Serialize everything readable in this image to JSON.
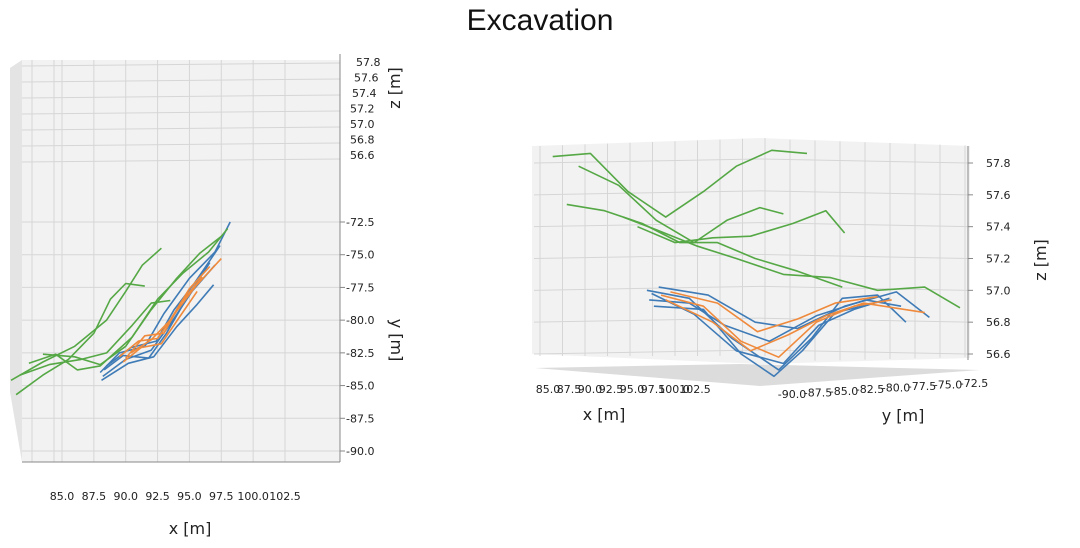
{
  "page": {
    "title": "Excavation"
  },
  "colors": {
    "blue": "#3f7bb6",
    "orange": "#ef8a3c",
    "green": "#55a845",
    "grid": "#d6d6d6",
    "pane": "#f2f2f2"
  },
  "chart_data": [
    {
      "type": "line",
      "projection": "3d-view-top",
      "x_axis": {
        "label": "x [m]",
        "ticks": [
          "85.0",
          "87.5",
          "90.0",
          "92.5",
          "95.0",
          "97.5",
          "100.0",
          "102.5"
        ]
      },
      "y_axis": {
        "label": "y [m]",
        "ticks": [
          "-72.5",
          "-75.0",
          "-77.5",
          "-80.0",
          "-82.5",
          "-85.0",
          "-87.5",
          "-90.0"
        ]
      },
      "z_axis": {
        "label": "z [m]",
        "ticks": [
          "57.8",
          "57.6",
          "57.4",
          "57.2",
          "57.0",
          "56.8",
          "56.6"
        ]
      },
      "series": [
        {
          "color": "blue",
          "lines": [
            [
              [
                88.0,
                -84.0
              ],
              [
                89.5,
                -82.5
              ],
              [
                91.5,
                -82.0
              ],
              [
                93.0,
                -79.5
              ],
              [
                95.0,
                -76.8
              ],
              [
                97.0,
                -74.8
              ],
              [
                98.2,
                -72.5
              ]
            ],
            [
              [
                88.2,
                -84.3
              ],
              [
                90.0,
                -83.0
              ],
              [
                92.0,
                -82.3
              ],
              [
                93.5,
                -80.3
              ],
              [
                95.2,
                -77.8
              ],
              [
                97.0,
                -75.8
              ]
            ],
            [
              [
                88.1,
                -84.6
              ],
              [
                90.2,
                -83.3
              ],
              [
                92.2,
                -82.8
              ],
              [
                94.0,
                -80.5
              ],
              [
                95.6,
                -78.8
              ],
              [
                96.9,
                -77.3
              ]
            ],
            [
              [
                88.3,
                -83.8
              ],
              [
                89.8,
                -82.7
              ],
              [
                91.8,
                -82.9
              ],
              [
                93.2,
                -81.0
              ],
              [
                94.8,
                -78.3
              ],
              [
                96.6,
                -75.6
              ]
            ],
            [
              [
                88.5,
                -83.5
              ],
              [
                90.4,
                -82.1
              ],
              [
                92.4,
                -81.6
              ],
              [
                93.8,
                -79.2
              ],
              [
                95.3,
                -77.3
              ],
              [
                97.4,
                -74.3
              ]
            ]
          ]
        },
        {
          "color": "orange",
          "lines": [
            [
              [
                89.5,
                -82.8
              ],
              [
                91.0,
                -81.6
              ],
              [
                92.5,
                -81.4
              ],
              [
                94.0,
                -79.3
              ],
              [
                95.5,
                -77.4
              ],
              [
                97.5,
                -75.3
              ]
            ],
            [
              [
                90.0,
                -82.9
              ],
              [
                91.5,
                -81.2
              ],
              [
                93.0,
                -81.0
              ],
              [
                94.3,
                -78.7
              ],
              [
                96.0,
                -76.7
              ]
            ],
            [
              [
                89.8,
                -83.2
              ],
              [
                91.2,
                -82.1
              ],
              [
                92.8,
                -81.8
              ],
              [
                94.2,
                -79.8
              ],
              [
                95.6,
                -77.8
              ]
            ],
            [
              [
                90.4,
                -82.5
              ],
              [
                92.0,
                -81.5
              ],
              [
                93.5,
                -80.0
              ],
              [
                95.0,
                -77.6
              ],
              [
                96.6,
                -75.9
              ]
            ]
          ]
        },
        {
          "color": "green",
          "lines": [
            [
              [
                81.0,
                -84.6
              ],
              [
                83.5,
                -83.2
              ],
              [
                86.0,
                -82.0
              ],
              [
                88.5,
                -80.0
              ],
              [
                90.0,
                -77.8
              ],
              [
                91.3,
                -75.8
              ],
              [
                92.8,
                -74.5
              ]
            ],
            [
              [
                81.4,
                -85.7
              ],
              [
                83.5,
                -84.2
              ],
              [
                85.5,
                -83.0
              ],
              [
                87.5,
                -81.0
              ],
              [
                88.8,
                -78.4
              ],
              [
                90.0,
                -77.2
              ],
              [
                91.5,
                -77.4
              ]
            ],
            [
              [
                81.7,
                -84.2
              ],
              [
                84.0,
                -83.4
              ],
              [
                86.5,
                -83.0
              ],
              [
                88.5,
                -82.5
              ],
              [
                90.5,
                -80.4
              ],
              [
                92.0,
                -78.7
              ],
              [
                93.5,
                -78.5
              ]
            ],
            [
              [
                82.4,
                -83.3
              ],
              [
                84.5,
                -82.6
              ],
              [
                86.2,
                -83.8
              ],
              [
                88.0,
                -83.5
              ],
              [
                90.5,
                -81.3
              ],
              [
                92.5,
                -78.4
              ],
              [
                94.5,
                -76.4
              ],
              [
                96.5,
                -74.8
              ],
              [
                98.0,
                -73.0
              ]
            ],
            [
              [
                83.5,
                -82.6
              ],
              [
                86.0,
                -82.8
              ],
              [
                88.0,
                -83.4
              ],
              [
                90.0,
                -82.0
              ],
              [
                92.0,
                -79.2
              ],
              [
                94.0,
                -76.8
              ],
              [
                95.8,
                -74.9
              ],
              [
                97.5,
                -73.6
              ]
            ]
          ]
        }
      ]
    },
    {
      "type": "line",
      "projection": "3d-view-side",
      "x_axis": {
        "label": "x [m]",
        "ticks": [
          "85.0",
          "87.5",
          "90.0",
          "92.5",
          "95.0",
          "97.5",
          "100.0",
          "102.5"
        ]
      },
      "y_axis": {
        "label": "y [m]",
        "ticks": [
          "-90.0",
          "-87.5",
          "-85.0",
          "-82.5",
          "-80.0",
          "-77.5",
          "-75.0",
          "-72.5"
        ]
      },
      "z_axis": {
        "label": "z [m]",
        "ticks": [
          "57.8",
          "57.6",
          "57.4",
          "57.2",
          "57.0",
          "56.8",
          "56.6"
        ],
        "range": [
          56.5,
          57.9
        ]
      },
      "x_range": [
        85.0,
        102.5
      ],
      "series": [
        {
          "color": "blue",
          "lines": [
            [
              [
                89.2,
                57.0
              ],
              [
                91.0,
                56.95
              ],
              [
                92.8,
                56.7
              ],
              [
                94.8,
                56.5
              ],
              [
                96.2,
                56.7
              ],
              [
                97.5,
                56.95
              ],
              [
                99.0,
                56.97
              ],
              [
                100.2,
                56.8
              ]
            ],
            [
              [
                89.4,
                56.98
              ],
              [
                91.2,
                56.85
              ],
              [
                93.0,
                56.62
              ],
              [
                95.0,
                56.54
              ],
              [
                96.5,
                56.78
              ],
              [
                98.0,
                56.88
              ],
              [
                99.5,
                56.95
              ]
            ],
            [
              [
                89.3,
                56.94
              ],
              [
                91.0,
                56.92
              ],
              [
                92.5,
                56.78
              ],
              [
                94.4,
                56.68
              ],
              [
                96.4,
                56.84
              ],
              [
                98.5,
                56.94
              ],
              [
                100.0,
                56.9
              ]
            ],
            [
              [
                89.5,
                56.9
              ],
              [
                91.6,
                56.88
              ],
              [
                93.2,
                56.6
              ],
              [
                94.6,
                56.46
              ],
              [
                95.8,
                56.62
              ],
              [
                97.2,
                56.86
              ],
              [
                98.6,
                56.91
              ]
            ],
            [
              [
                89.7,
                57.02
              ],
              [
                91.8,
                56.97
              ],
              [
                93.8,
                56.8
              ],
              [
                95.6,
                56.76
              ],
              [
                97.6,
                56.9
              ],
              [
                99.8,
                56.99
              ],
              [
                101.2,
                56.83
              ]
            ]
          ]
        },
        {
          "color": "orange",
          "lines": [
            [
              [
                89.8,
                56.97
              ],
              [
                91.6,
                56.9
              ],
              [
                93.2,
                56.68
              ],
              [
                94.8,
                56.58
              ],
              [
                96.4,
                56.8
              ],
              [
                98.0,
                56.9
              ],
              [
                99.6,
                56.94
              ]
            ],
            [
              [
                90.0,
                56.94
              ],
              [
                92.0,
                56.8
              ],
              [
                93.6,
                56.62
              ],
              [
                95.2,
                56.72
              ],
              [
                96.8,
                56.84
              ],
              [
                98.4,
                56.92
              ],
              [
                101.0,
                56.86
              ]
            ],
            [
              [
                90.2,
                56.99
              ],
              [
                92.2,
                56.92
              ],
              [
                93.9,
                56.74
              ],
              [
                95.6,
                56.82
              ],
              [
                97.2,
                56.92
              ],
              [
                99.0,
                56.96
              ]
            ]
          ]
        },
        {
          "color": "green",
          "lines": [
            [
              [
                85.2,
                57.84
              ],
              [
                86.8,
                57.86
              ],
              [
                88.4,
                57.62
              ],
              [
                90.0,
                57.46
              ],
              [
                91.6,
                57.62
              ],
              [
                93.0,
                57.78
              ],
              [
                94.5,
                57.88
              ],
              [
                96.0,
                57.86
              ]
            ],
            [
              [
                85.8,
                57.54
              ],
              [
                87.4,
                57.5
              ],
              [
                89.0,
                57.42
              ],
              [
                90.6,
                57.3
              ],
              [
                92.2,
                57.3
              ],
              [
                93.8,
                57.2
              ],
              [
                95.6,
                57.12
              ],
              [
                97.5,
                57.02
              ]
            ],
            [
              [
                86.3,
                57.78
              ],
              [
                88.0,
                57.66
              ],
              [
                89.6,
                57.44
              ],
              [
                91.2,
                57.3
              ],
              [
                92.6,
                57.44
              ],
              [
                94.0,
                57.52
              ],
              [
                95.0,
                57.48
              ]
            ],
            [
              [
                88.2,
                57.46
              ],
              [
                89.6,
                57.38
              ],
              [
                91.3,
                57.28
              ],
              [
                93.0,
                57.2
              ],
              [
                95.0,
                57.1
              ],
              [
                97.0,
                57.08
              ],
              [
                99.0,
                57.0
              ],
              [
                101.0,
                57.02
              ],
              [
                102.5,
                56.89
              ]
            ],
            [
              [
                88.8,
                57.4
              ],
              [
                90.4,
                57.3
              ],
              [
                92.0,
                57.33
              ],
              [
                93.6,
                57.34
              ],
              [
                95.4,
                57.42
              ],
              [
                96.8,
                57.5
              ],
              [
                97.6,
                57.36
              ]
            ]
          ]
        }
      ]
    }
  ]
}
